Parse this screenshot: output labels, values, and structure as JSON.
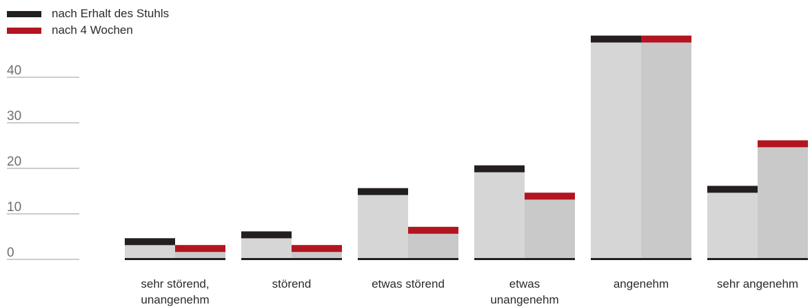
{
  "chart_data": {
    "type": "bar",
    "categories": [
      [
        "sehr störend,",
        "unangenehm"
      ],
      [
        "störend"
      ],
      [
        "etwas störend"
      ],
      [
        "etwas",
        "unangenehm"
      ],
      [
        "angenehm"
      ],
      [
        "sehr angenehm"
      ]
    ],
    "series": [
      {
        "name": "nach Erhalt des Stuhls",
        "values": [
          4.5,
          6,
          15.5,
          20.5,
          49,
          16
        ]
      },
      {
        "name": "nach 4 Wochen",
        "values": [
          3,
          3,
          7,
          14.5,
          49,
          26
        ]
      }
    ],
    "yticks": [
      0,
      10,
      20,
      30,
      40
    ],
    "ylim": [
      0,
      50
    ],
    "grid": false,
    "legend_position": "top-left"
  },
  "colors": {
    "series_caps": [
      "#231f20",
      "#b2151f"
    ],
    "bar_fills": [
      "#d6d6d6",
      "#c9c9c9"
    ],
    "baseline": "#231f20",
    "axis_line": "#9a9a9a"
  }
}
